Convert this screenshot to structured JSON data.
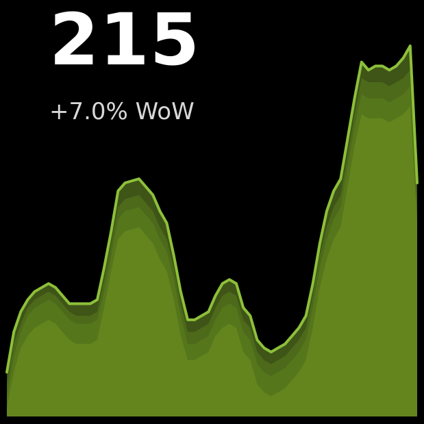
{
  "kpi": {
    "value": "215",
    "change": "+7.0% WoW"
  },
  "colors": {
    "background": "#000000",
    "line": "#8dc03a",
    "band_dark": "#3f5417",
    "band_mid": "#4c6a1a",
    "band_light": "#56761c",
    "area_base": "#64851e"
  },
  "chart_data": {
    "type": "area",
    "title": "",
    "xlabel": "",
    "ylabel": "",
    "grid": false,
    "legend": "none",
    "ylim": [
      0,
      1
    ],
    "series": [
      {
        "values": [
          0.11,
          0.21,
          0.26,
          0.29,
          0.31,
          0.32,
          0.33,
          0.32,
          0.3,
          0.28,
          0.28,
          0.28,
          0.28,
          0.29,
          0.37,
          0.46,
          0.56,
          0.58,
          0.585,
          0.59,
          0.57,
          0.55,
          0.51,
          0.48,
          0.4,
          0.31,
          0.24,
          0.24,
          0.25,
          0.26,
          0.3,
          0.33,
          0.34,
          0.33,
          0.27,
          0.25,
          0.19,
          0.17,
          0.16,
          0.17,
          0.18,
          0.2,
          0.22,
          0.25,
          0.33,
          0.43,
          0.51,
          0.56,
          0.59,
          0.69,
          0.79,
          0.88,
          0.86,
          0.87,
          0.87,
          0.86,
          0.87,
          0.89,
          0.92,
          0.58
        ]
      },
      {
        "values": [
          0.08,
          0.18,
          0.23,
          0.27,
          0.29,
          0.3,
          0.31,
          0.3,
          0.28,
          0.26,
          0.25,
          0.25,
          0.25,
          0.26,
          0.34,
          0.43,
          0.52,
          0.54,
          0.545,
          0.55,
          0.53,
          0.51,
          0.47,
          0.44,
          0.37,
          0.28,
          0.21,
          0.21,
          0.22,
          0.23,
          0.27,
          0.3,
          0.31,
          0.3,
          0.24,
          0.22,
          0.16,
          0.14,
          0.13,
          0.14,
          0.15,
          0.17,
          0.19,
          0.22,
          0.3,
          0.4,
          0.47,
          0.52,
          0.55,
          0.65,
          0.75,
          0.84,
          0.83,
          0.83,
          0.83,
          0.82,
          0.83,
          0.84,
          0.86,
          0.54
        ]
      },
      {
        "values": [
          0.05,
          0.15,
          0.21,
          0.25,
          0.27,
          0.28,
          0.29,
          0.28,
          0.26,
          0.24,
          0.23,
          0.23,
          0.23,
          0.24,
          0.31,
          0.4,
          0.49,
          0.51,
          0.515,
          0.52,
          0.5,
          0.48,
          0.44,
          0.41,
          0.34,
          0.25,
          0.18,
          0.18,
          0.19,
          0.2,
          0.24,
          0.27,
          0.28,
          0.27,
          0.21,
          0.19,
          0.13,
          0.11,
          0.1,
          0.11,
          0.12,
          0.14,
          0.16,
          0.19,
          0.27,
          0.37,
          0.44,
          0.49,
          0.52,
          0.62,
          0.72,
          0.8,
          0.79,
          0.79,
          0.79,
          0.78,
          0.79,
          0.8,
          0.82,
          0.51
        ]
      },
      {
        "values": [
          0.02,
          0.11,
          0.17,
          0.2,
          0.22,
          0.23,
          0.24,
          0.23,
          0.21,
          0.19,
          0.18,
          0.18,
          0.18,
          0.19,
          0.27,
          0.36,
          0.44,
          0.46,
          0.465,
          0.47,
          0.45,
          0.43,
          0.39,
          0.36,
          0.29,
          0.2,
          0.14,
          0.14,
          0.15,
          0.16,
          0.2,
          0.22,
          0.23,
          0.22,
          0.16,
          0.14,
          0.08,
          0.06,
          0.05,
          0.06,
          0.07,
          0.09,
          0.11,
          0.14,
          0.22,
          0.32,
          0.39,
          0.44,
          0.47,
          0.57,
          0.67,
          0.75,
          0.74,
          0.74,
          0.74,
          0.73,
          0.74,
          0.75,
          0.77,
          0.48
        ]
      }
    ]
  }
}
